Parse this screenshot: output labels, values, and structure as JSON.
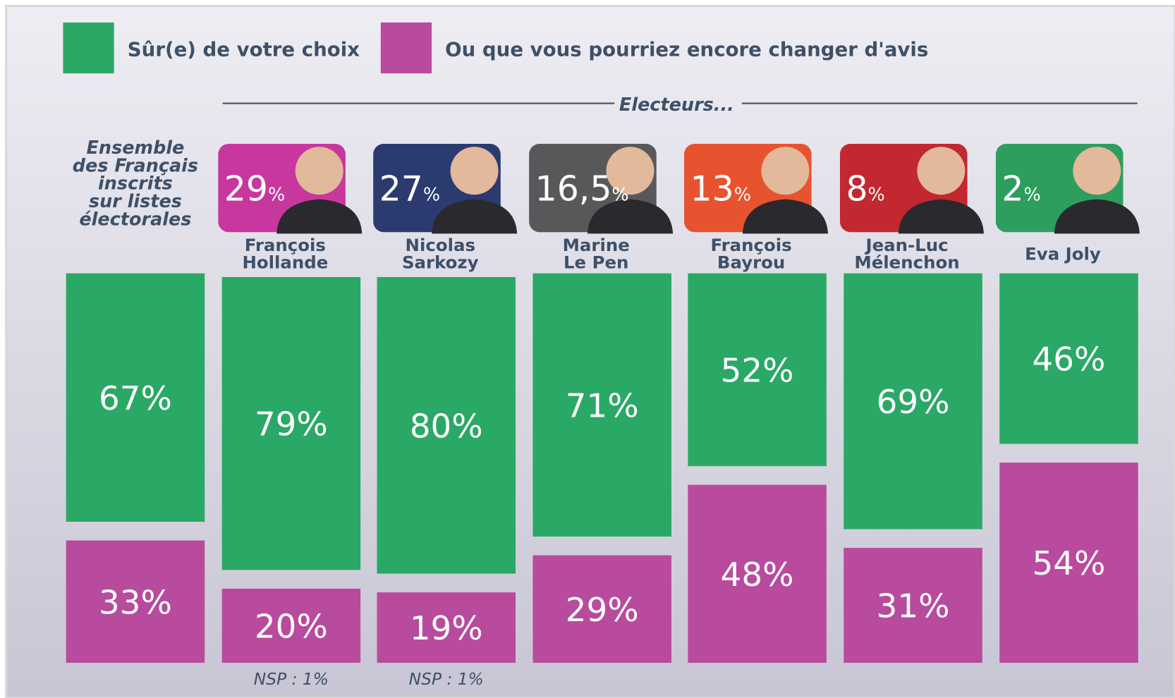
{
  "chart_data": {
    "type": "bar",
    "stacked": true,
    "heading": "Electeurs...",
    "categories": [
      "Ensemble\ndes Français\ninscrits\nsur listes\nélectorales",
      "François\nHollande",
      "Nicolas\nSarkozy",
      "Marine\nLe Pen",
      "François\nBayrou",
      "Jean-Luc\nMélenchon",
      "Eva Joly"
    ],
    "candidate_scores": {
      "values": [
        null,
        29,
        27,
        16.5,
        13,
        8,
        2
      ],
      "value_labels": [
        null,
        "29%",
        "27%",
        "16,5%",
        "13%",
        "8%",
        "2%"
      ],
      "colors": [
        null,
        "#c8379e",
        "#2b3b70",
        "#58585a",
        "#e8532f",
        "#c1282f",
        "#2e9e5e"
      ]
    },
    "series": [
      {
        "name": "Sûr(e) de votre choix",
        "color": "#2aa866",
        "values": [
          67,
          79,
          80,
          71,
          52,
          69,
          46
        ],
        "value_labels": [
          "67%",
          "79%",
          "80%",
          "71%",
          "52%",
          "69%",
          "46%"
        ]
      },
      {
        "name": "Ou que vous pourriez encore changer d'avis",
        "color": "#b84b9e",
        "values": [
          33,
          20,
          19,
          29,
          48,
          31,
          54
        ],
        "value_labels": [
          "33%",
          "20%",
          "19%",
          "29%",
          "48%",
          "31%",
          "54%"
        ]
      }
    ],
    "notes": [
      null,
      "NSP : 1%",
      "NSP : 1%",
      null,
      null,
      null,
      null
    ]
  }
}
